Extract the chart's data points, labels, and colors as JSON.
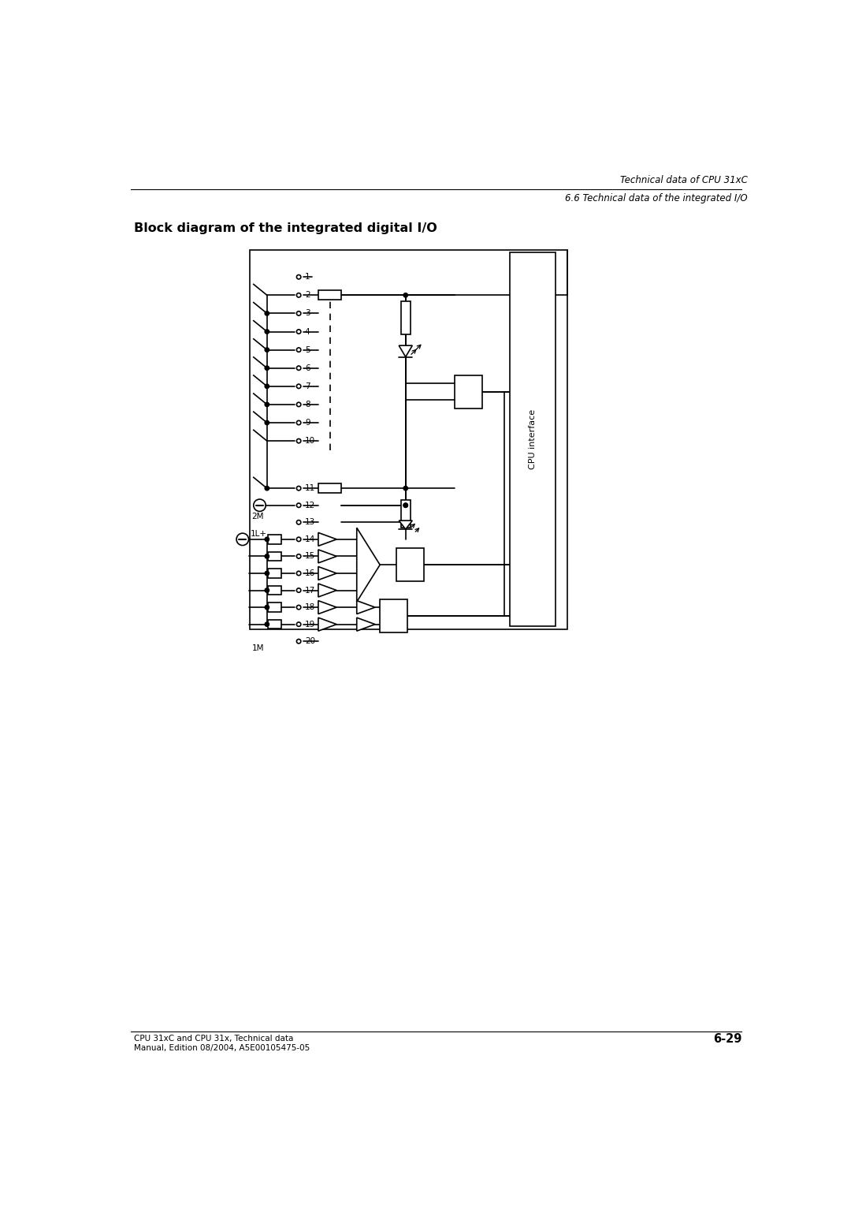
{
  "title": "Block diagram of the integrated digital I/O",
  "header_line1": "Technical data of CPU 31xC",
  "header_line2": "6.6 Technical data of the integrated I/O",
  "footer_line1": "CPU 31xC and CPU 31x, Technical data",
  "footer_line2": "Manual, Edition 08/2004, A5E00105475-05",
  "footer_page": "6-29",
  "bg_color": "#ffffff",
  "lc": "#000000",
  "cpu_label": "CPU interface",
  "label_2M": "2M",
  "label_1Lp": "1L+",
  "label_1M": "1M"
}
